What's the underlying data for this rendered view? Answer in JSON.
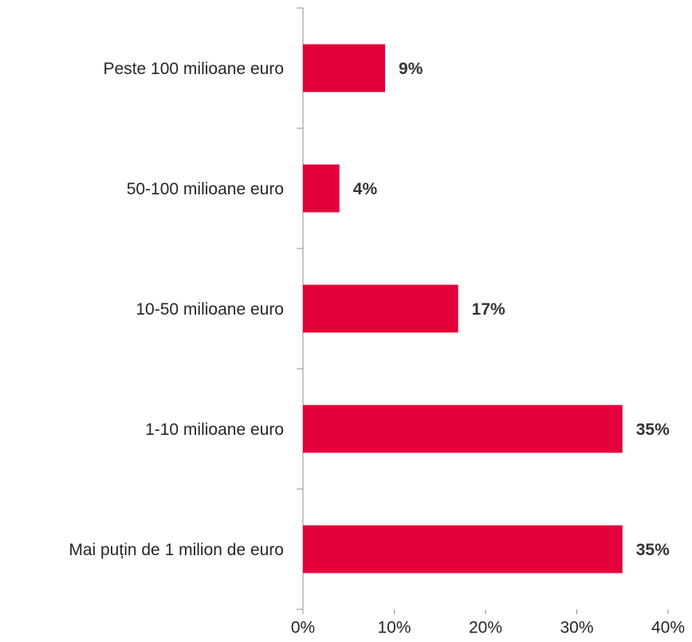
{
  "chart_data": {
    "type": "bar",
    "orientation": "horizontal",
    "categories": [
      "Peste 100 milioane euro",
      "50-100 milioane euro",
      "10-50 milioane euro",
      "1-10 milioane euro",
      "Mai puțin de 1 milion de euro"
    ],
    "values": [
      9,
      4,
      17,
      35,
      35
    ],
    "value_labels": [
      "9%",
      "4%",
      "17%",
      "35%",
      "35%"
    ],
    "color": "#e4003b",
    "xlim": [
      0,
      40
    ],
    "xticks": [
      {
        "value": 0,
        "label": "0%"
      },
      {
        "value": 10,
        "label": "10%"
      },
      {
        "value": 20,
        "label": "20%"
      },
      {
        "value": 30,
        "label": "30%"
      },
      {
        "value": 40,
        "label": "40%"
      }
    ],
    "grid": false
  }
}
